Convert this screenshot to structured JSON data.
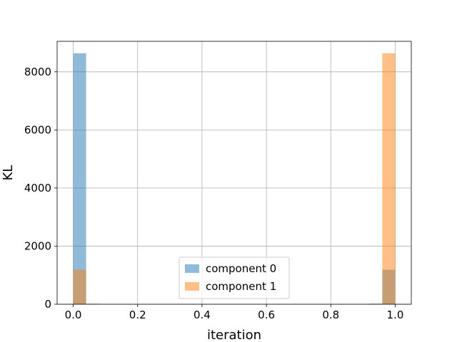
{
  "chart_data": {
    "type": "bar",
    "subtype": "histogram",
    "xlabel": "iteration",
    "ylabel": "KL",
    "xlim": [
      -0.05,
      1.05
    ],
    "ylim": [
      0,
      9050
    ],
    "xticks": [
      "0.0",
      "0.2",
      "0.4",
      "0.6",
      "0.8",
      "1.0"
    ],
    "xtick_values": [
      0.0,
      0.2,
      0.4,
      0.6,
      0.8,
      1.0
    ],
    "yticks": [
      "0",
      "2000",
      "4000",
      "6000",
      "8000"
    ],
    "ytick_values": [
      0,
      2000,
      4000,
      6000,
      8000
    ],
    "grid": true,
    "legend_position": "lower center",
    "bin_width": 0.04,
    "series": [
      {
        "name": "component 0",
        "color": "#1f77b4",
        "alpha": 0.5,
        "bins": [
          {
            "x0": 0.0,
            "x1": 0.04,
            "value": 8640
          },
          {
            "x0": 0.92,
            "x1": 0.96,
            "value": 20
          },
          {
            "x0": 0.96,
            "x1": 1.0,
            "value": 1190
          }
        ]
      },
      {
        "name": "component 1",
        "color": "#ff7f0e",
        "alpha": 0.5,
        "bins": [
          {
            "x0": 0.0,
            "x1": 0.04,
            "value": 1190
          },
          {
            "x0": 0.04,
            "x1": 0.08,
            "value": 20
          },
          {
            "x0": 0.96,
            "x1": 1.0,
            "value": 8640
          }
        ]
      }
    ]
  }
}
